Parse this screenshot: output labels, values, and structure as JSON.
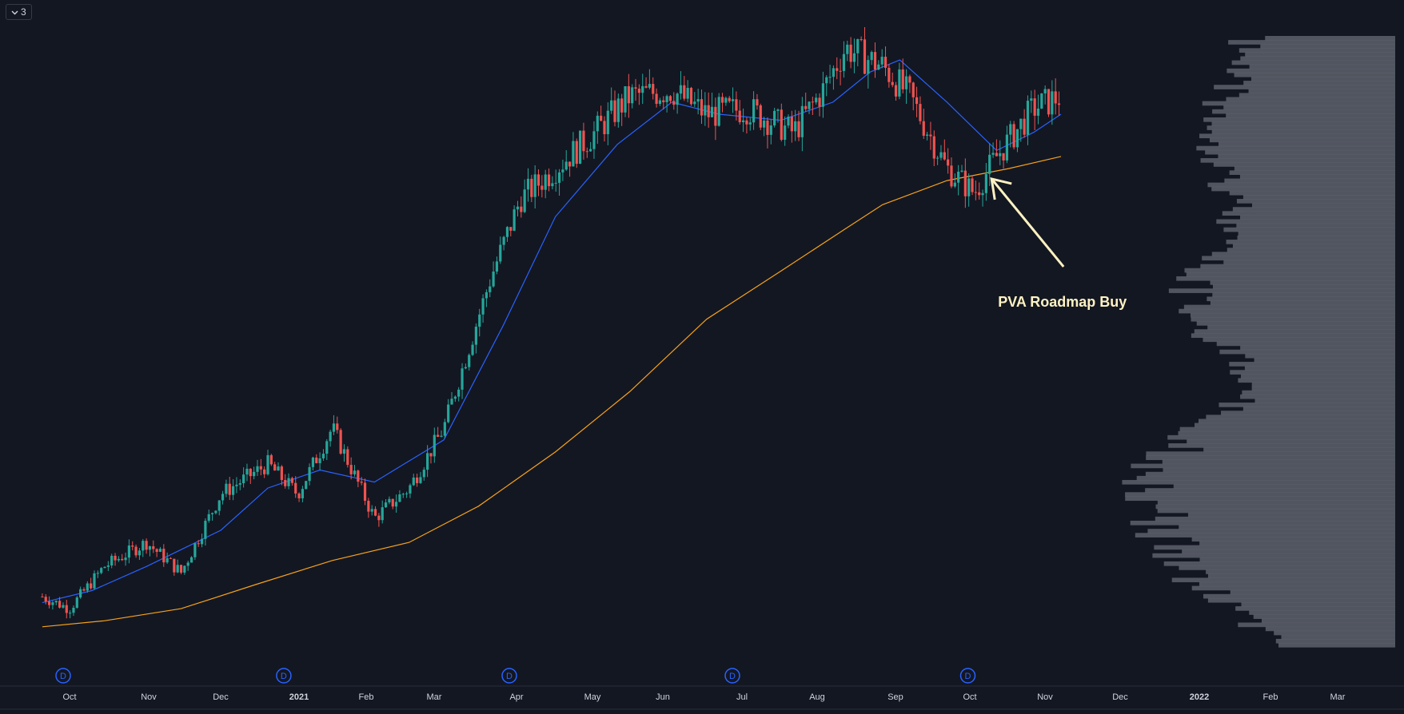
{
  "toolbar": {
    "collapse_count": "3",
    "collapse_icon": "chevron-down-icon"
  },
  "colors": {
    "background": "#131722",
    "up_candle": "#26a69a",
    "down_candle": "#ef5350",
    "ma_short": "#2962ff",
    "ma_long": "#f7a21b",
    "volume_profile": "#5d606b",
    "annotation": "#fff2c2",
    "axis_text": "#d1d4dc",
    "dividend_marker": "#2962ff"
  },
  "chart_data": {
    "type": "candlestick",
    "title": "",
    "x_axis": {
      "tick_labels": [
        "Oct",
        "Nov",
        "Dec",
        "2021",
        "Feb",
        "Mar",
        "Apr",
        "May",
        "Jun",
        "Jul",
        "Aug",
        "Sep",
        "Oct",
        "Nov",
        "Dec",
        "2022",
        "Feb",
        "Mar"
      ],
      "bold_ticks": [
        "2021",
        "2022"
      ]
    },
    "series": [
      {
        "kind": "ohlc",
        "price_path": [
          [
            "2020-09-20",
            0.09
          ],
          [
            "2020-10-01",
            0.07
          ],
          [
            "2020-10-15",
            0.14
          ],
          [
            "2020-11-01",
            0.18
          ],
          [
            "2020-11-15",
            0.13
          ],
          [
            "2020-12-01",
            0.26
          ],
          [
            "2020-12-20",
            0.31
          ],
          [
            "2021-01-01",
            0.26
          ],
          [
            "2021-01-15",
            0.37
          ],
          [
            "2021-02-01",
            0.22
          ],
          [
            "2021-02-15",
            0.27
          ],
          [
            "2021-03-01",
            0.37
          ],
          [
            "2021-03-20",
            0.62
          ],
          [
            "2021-04-01",
            0.75
          ],
          [
            "2021-04-15",
            0.8
          ],
          [
            "2021-05-01",
            0.86
          ],
          [
            "2021-05-15",
            0.92
          ],
          [
            "2021-06-01",
            0.93
          ],
          [
            "2021-06-15",
            0.89
          ],
          [
            "2021-07-01",
            0.9
          ],
          [
            "2021-07-20",
            0.86
          ],
          [
            "2021-08-01",
            0.93
          ],
          [
            "2021-08-10",
            1.0
          ],
          [
            "2021-08-25",
            0.97
          ],
          [
            "2021-09-05",
            0.92
          ],
          [
            "2021-09-20",
            0.8
          ],
          [
            "2021-10-01",
            0.76
          ],
          [
            "2021-10-10",
            0.82
          ],
          [
            "2021-10-25",
            0.9
          ],
          [
            "2021-11-05",
            0.92
          ]
        ]
      },
      {
        "kind": "ma_short",
        "path": [
          [
            "2020-09-20",
            0.08
          ],
          [
            "2020-10-10",
            0.1
          ],
          [
            "2020-11-01",
            0.14
          ],
          [
            "2020-12-01",
            0.2
          ],
          [
            "2020-12-20",
            0.27
          ],
          [
            "2021-01-10",
            0.3
          ],
          [
            "2021-02-01",
            0.28
          ],
          [
            "2021-03-01",
            0.35
          ],
          [
            "2021-03-25",
            0.54
          ],
          [
            "2021-04-15",
            0.72
          ],
          [
            "2021-05-10",
            0.84
          ],
          [
            "2021-06-01",
            0.91
          ],
          [
            "2021-06-20",
            0.89
          ],
          [
            "2021-07-15",
            0.88
          ],
          [
            "2021-08-05",
            0.91
          ],
          [
            "2021-08-20",
            0.96
          ],
          [
            "2021-09-01",
            0.98
          ],
          [
            "2021-09-20",
            0.91
          ],
          [
            "2021-10-10",
            0.83
          ],
          [
            "2021-10-25",
            0.86
          ],
          [
            "2021-11-05",
            0.89
          ]
        ]
      },
      {
        "kind": "ma_long",
        "path": [
          [
            "2020-09-20",
            0.04
          ],
          [
            "2020-10-15",
            0.05
          ],
          [
            "2020-11-15",
            0.07
          ],
          [
            "2020-12-15",
            0.11
          ],
          [
            "2021-01-15",
            0.15
          ],
          [
            "2021-02-15",
            0.18
          ],
          [
            "2021-03-15",
            0.24
          ],
          [
            "2021-04-15",
            0.33
          ],
          [
            "2021-05-15",
            0.43
          ],
          [
            "2021-06-15",
            0.55
          ],
          [
            "2021-07-15",
            0.63
          ],
          [
            "2021-08-10",
            0.7
          ],
          [
            "2021-08-25",
            0.74
          ],
          [
            "2021-09-20",
            0.78
          ],
          [
            "2021-10-15",
            0.8
          ],
          [
            "2021-11-05",
            0.82
          ]
        ]
      }
    ],
    "dividend_markers": {
      "label": "D",
      "dates": [
        "2020-10-01",
        "2020-12-29",
        "2021-03-30",
        "2021-06-28",
        "2021-10-01"
      ]
    },
    "annotation": {
      "text": "PVA Roadmap Buy",
      "arrow_target_date": "2021-10-08"
    },
    "volume_profile": {
      "placement": "right",
      "peak_profile": [
        0.55,
        0.7,
        0.6,
        0.85,
        0.5,
        1.0,
        0.9,
        0.4
      ]
    },
    "grid": false,
    "legend": "none"
  }
}
